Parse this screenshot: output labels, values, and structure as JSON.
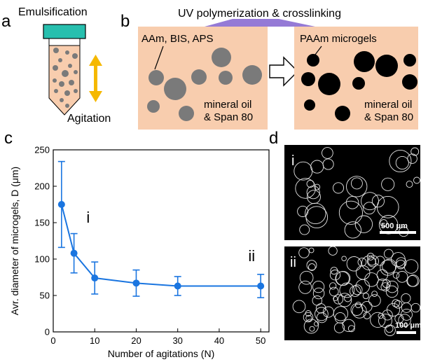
{
  "panels": {
    "a": {
      "letter": "a",
      "top_label": "Emulsification",
      "bottom_label": "Agitation",
      "colors": {
        "cap": "#27bfae",
        "liquid": "#f8cdae",
        "drop": "#7a7a7a",
        "arrow": "#f5b800"
      }
    },
    "b": {
      "letter": "b",
      "uv_label": "UV polymerization & crosslinking",
      "left_box": {
        "label": "AAm, BIS, APS",
        "oil_line1": "mineral oil",
        "oil_line2": "& Span 80"
      },
      "right_box": {
        "label": "PAAm microgels",
        "oil_line1": "mineral oil",
        "oil_line2": "& Span 80"
      },
      "colors": {
        "box": "#f8cdae",
        "uv": "#8a6bd1",
        "pre_gel_drop": "#7a7a7a",
        "microgel": "#000000"
      }
    },
    "c": {
      "letter": "c"
    },
    "d": {
      "letter": "d",
      "image_i": {
        "label": "i",
        "scale_bar": "500 μm"
      },
      "image_ii": {
        "label": "ii",
        "scale_bar": "100 μm"
      }
    }
  },
  "chart_data": {
    "type": "line",
    "xlabel": "Number of agitations (N)",
    "ylabel": "Avr. diameter of microgels, D (μm)",
    "xlim": [
      0,
      52
    ],
    "ylim": [
      0,
      250
    ],
    "x_ticks": [
      0,
      10,
      20,
      30,
      40,
      50
    ],
    "y_ticks": [
      0,
      50,
      100,
      150,
      200,
      250
    ],
    "series": [
      {
        "x": [
          2,
          5,
          10,
          20,
          30,
          50
        ],
        "y": [
          175,
          108,
          74,
          67,
          63,
          63
        ],
        "err": [
          59,
          27,
          22,
          18,
          13,
          16
        ]
      }
    ],
    "annotations": [
      {
        "text": "i",
        "x": 8,
        "y": 150
      },
      {
        "text": "ii",
        "x": 47,
        "y": 97
      }
    ],
    "grid": false,
    "color": "#1a75e0"
  }
}
